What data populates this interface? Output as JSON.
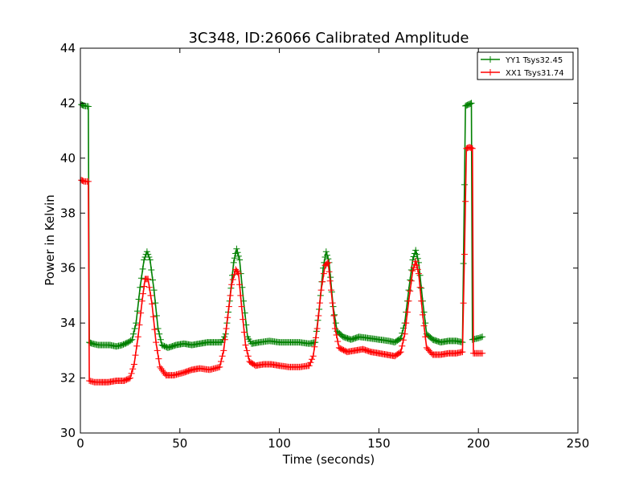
{
  "chart_data": {
    "type": "line",
    "title": "3C348, ID:26066 Calibrated Amplitude",
    "xlabel": "Time (seconds)",
    "ylabel": "Power in Kelvin",
    "xlim": [
      0,
      250
    ],
    "ylim": [
      30,
      44
    ],
    "xticks": [
      0,
      50,
      100,
      150,
      200,
      250
    ],
    "yticks": [
      30,
      32,
      34,
      36,
      38,
      40,
      42,
      44
    ],
    "grid": false,
    "legend_position": "top-right",
    "marker": "plus",
    "series": [
      {
        "name": "YY1 Tsys32.45",
        "color": "#008000",
        "points": [
          [
            0.5,
            41.95
          ],
          [
            2,
            41.9
          ],
          [
            4,
            41.88
          ],
          [
            4.5,
            33.3
          ],
          [
            6,
            33.25
          ],
          [
            9,
            33.2
          ],
          [
            12,
            33.2
          ],
          [
            15,
            33.2
          ],
          [
            18,
            33.15
          ],
          [
            21,
            33.2
          ],
          [
            24,
            33.3
          ],
          [
            26,
            33.4
          ],
          [
            28,
            34.0
          ],
          [
            30,
            35.3
          ],
          [
            32,
            36.3
          ],
          [
            33.5,
            36.6
          ],
          [
            35,
            36.3
          ],
          [
            37,
            35.2
          ],
          [
            39,
            33.8
          ],
          [
            41,
            33.2
          ],
          [
            44,
            33.1
          ],
          [
            48,
            33.2
          ],
          [
            52,
            33.25
          ],
          [
            56,
            33.2
          ],
          [
            60,
            33.25
          ],
          [
            64,
            33.3
          ],
          [
            68,
            33.3
          ],
          [
            71,
            33.3
          ],
          [
            73,
            33.6
          ],
          [
            75,
            34.8
          ],
          [
            77,
            36.2
          ],
          [
            78.5,
            36.7
          ],
          [
            80,
            36.3
          ],
          [
            82,
            34.8
          ],
          [
            84,
            33.5
          ],
          [
            86,
            33.25
          ],
          [
            90,
            33.3
          ],
          [
            95,
            33.35
          ],
          [
            100,
            33.3
          ],
          [
            105,
            33.3
          ],
          [
            110,
            33.3
          ],
          [
            115,
            33.25
          ],
          [
            118,
            33.3
          ],
          [
            120,
            34.5
          ],
          [
            122,
            36.0
          ],
          [
            123.5,
            36.6
          ],
          [
            125,
            36.2
          ],
          [
            127,
            34.6
          ],
          [
            129,
            33.7
          ],
          [
            132,
            33.5
          ],
          [
            136,
            33.4
          ],
          [
            140,
            33.5
          ],
          [
            145,
            33.45
          ],
          [
            150,
            33.4
          ],
          [
            155,
            33.35
          ],
          [
            158,
            33.3
          ],
          [
            161,
            33.45
          ],
          [
            163,
            34.0
          ],
          [
            165,
            35.2
          ],
          [
            167,
            36.3
          ],
          [
            168.5,
            36.65
          ],
          [
            170,
            36.2
          ],
          [
            172,
            34.8
          ],
          [
            174,
            33.6
          ],
          [
            177,
            33.4
          ],
          [
            181,
            33.3
          ],
          [
            185,
            33.35
          ],
          [
            189,
            33.35
          ],
          [
            192,
            33.3
          ],
          [
            193.5,
            41.9
          ],
          [
            195,
            41.95
          ],
          [
            196.5,
            42.0
          ],
          [
            197,
            33.4
          ],
          [
            200,
            33.45
          ],
          [
            202,
            33.5
          ]
        ]
      },
      {
        "name": "XX1 Tsys31.74",
        "color": "#ff0000",
        "points": [
          [
            0.5,
            39.2
          ],
          [
            2,
            39.15
          ],
          [
            4,
            39.15
          ],
          [
            4.5,
            31.9
          ],
          [
            7,
            31.85
          ],
          [
            10,
            31.85
          ],
          [
            14,
            31.85
          ],
          [
            18,
            31.9
          ],
          [
            22,
            31.9
          ],
          [
            25,
            32.0
          ],
          [
            27,
            32.5
          ],
          [
            29,
            33.5
          ],
          [
            31,
            34.8
          ],
          [
            32.5,
            35.6
          ],
          [
            34,
            35.6
          ],
          [
            36,
            34.7
          ],
          [
            38,
            33.3
          ],
          [
            40,
            32.4
          ],
          [
            43,
            32.1
          ],
          [
            47,
            32.1
          ],
          [
            52,
            32.2
          ],
          [
            56,
            32.3
          ],
          [
            60,
            32.35
          ],
          [
            65,
            32.3
          ],
          [
            70,
            32.4
          ],
          [
            72,
            33.0
          ],
          [
            74,
            34.2
          ],
          [
            76,
            35.4
          ],
          [
            78,
            35.95
          ],
          [
            79.5,
            35.8
          ],
          [
            81,
            34.6
          ],
          [
            83,
            33.2
          ],
          [
            85,
            32.6
          ],
          [
            88,
            32.45
          ],
          [
            92,
            32.5
          ],
          [
            96,
            32.5
          ],
          [
            100,
            32.45
          ],
          [
            105,
            32.4
          ],
          [
            110,
            32.4
          ],
          [
            115,
            32.45
          ],
          [
            117,
            32.8
          ],
          [
            119,
            33.8
          ],
          [
            121,
            35.2
          ],
          [
            123,
            36.1
          ],
          [
            124.5,
            36.2
          ],
          [
            126,
            35.2
          ],
          [
            128,
            33.8
          ],
          [
            130,
            33.1
          ],
          [
            134,
            32.95
          ],
          [
            138,
            33.0
          ],
          [
            142,
            33.05
          ],
          [
            146,
            32.95
          ],
          [
            150,
            32.9
          ],
          [
            154,
            32.85
          ],
          [
            158,
            32.8
          ],
          [
            161,
            32.95
          ],
          [
            163,
            33.6
          ],
          [
            165,
            34.8
          ],
          [
            167,
            35.9
          ],
          [
            168.5,
            36.25
          ],
          [
            170,
            35.8
          ],
          [
            172,
            34.3
          ],
          [
            174,
            33.1
          ],
          [
            177,
            32.85
          ],
          [
            181,
            32.85
          ],
          [
            185,
            32.9
          ],
          [
            189,
            32.9
          ],
          [
            192,
            32.95
          ],
          [
            193,
            36.5
          ],
          [
            194,
            40.35
          ],
          [
            195.5,
            40.4
          ],
          [
            197,
            40.35
          ],
          [
            197.5,
            32.9
          ],
          [
            200,
            32.9
          ],
          [
            202,
            32.9
          ]
        ]
      }
    ]
  }
}
